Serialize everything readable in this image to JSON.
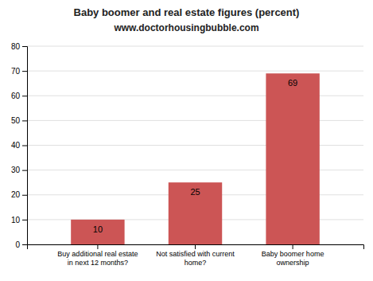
{
  "chart_data": {
    "type": "bar",
    "title": "Baby boomer and real estate figures (percent)",
    "subtitle": "www.doctorhousingbubble.com",
    "categories": [
      "Buy additional real estate\nin next 12 months?",
      "Not satisfied with current\nhome?",
      "Baby boomer home\nownership"
    ],
    "values": [
      10,
      25,
      69
    ],
    "color": "#cc5555",
    "ylim": [
      0,
      80
    ],
    "yticks": [
      0,
      10,
      20,
      30,
      40,
      50,
      60,
      70,
      80
    ],
    "grid": true,
    "data_labels": true
  }
}
